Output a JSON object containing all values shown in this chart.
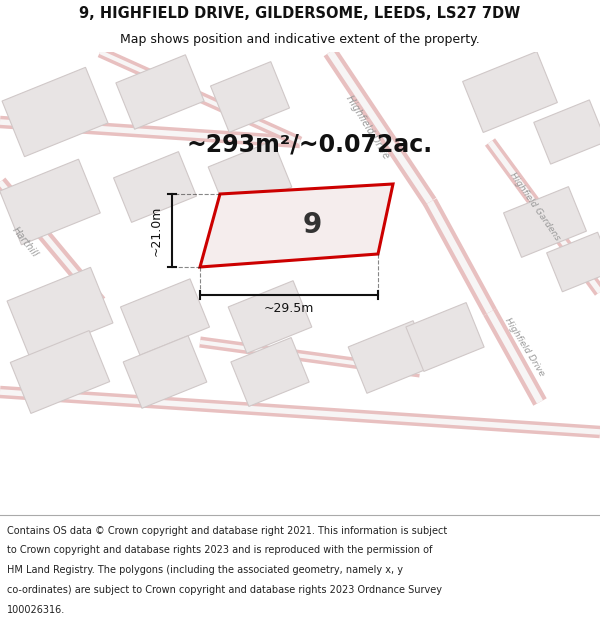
{
  "title_line1": "9, HIGHFIELD DRIVE, GILDERSOME, LEEDS, LS27 7DW",
  "title_line2": "Map shows position and indicative extent of the property.",
  "area_text": "~293m²/~0.072ac.",
  "property_number": "9",
  "dim_horizontal": "~29.5m",
  "dim_vertical": "~21.0m",
  "footer_lines": [
    "Contains OS data © Crown copyright and database right 2021. This information is subject",
    "to Crown copyright and database rights 2023 and is reproduced with the permission of",
    "HM Land Registry. The polygons (including the associated geometry, namely x, y",
    "co-ordinates) are subject to Crown copyright and database rights 2023 Ordnance Survey",
    "100026316."
  ],
  "map_bg": "#f7f5f5",
  "road_color": "#e8c0c0",
  "road_center_color": "#f7f5f5",
  "property_outline_color": "#cc0000",
  "property_fill": "#f5eded",
  "building_fill": "#e8e4e4",
  "building_stroke": "#d0c8c8",
  "text_color": "#111111",
  "road_label_color": "#999999",
  "footer_bg": "#ffffff",
  "title_bg": "#ffffff",
  "dim_line_color": "#111111"
}
